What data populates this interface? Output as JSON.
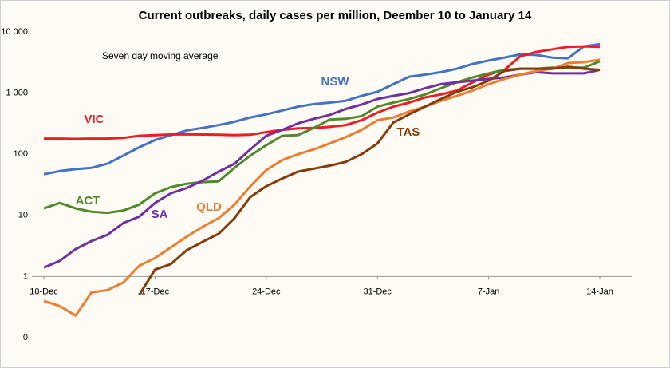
{
  "chart_data": {
    "type": "line",
    "title": "Current outbreaks, daily cases per million, Deember 10 to January 14",
    "subtitle": "Seven day moving average",
    "categories": [
      "10-Dec",
      null,
      null,
      null,
      null,
      null,
      null,
      "17-Dec",
      null,
      null,
      null,
      null,
      null,
      null,
      "24-Dec",
      null,
      null,
      null,
      null,
      null,
      null,
      "31-Dec",
      null,
      null,
      null,
      null,
      null,
      null,
      "7-Jan",
      null,
      null,
      null,
      null,
      null,
      null,
      "14-Jan"
    ],
    "log_scale": true,
    "ylim": [
      0.1,
      10000
    ],
    "yticks": [
      {
        "value": 10000,
        "label": "10 000"
      },
      {
        "value": 1000,
        "label": "1 000"
      },
      100,
      10,
      1,
      {
        "value": 0.1,
        "label": "0"
      }
    ],
    "x_axis_at": 1,
    "grid": false,
    "series": [
      {
        "name": "NSW",
        "color": "#4472c4",
        "values": [
          47,
          53,
          57,
          60,
          70,
          95,
          130,
          170,
          205,
          245,
          270,
          300,
          340,
          400,
          450,
          520,
          600,
          660,
          700,
          750,
          900,
          1050,
          1400,
          1850,
          2000,
          2200,
          2500,
          3000,
          3400,
          3800,
          4300,
          4200,
          3800,
          3700,
          5800,
          6300
        ]
      },
      {
        "name": "VIC",
        "color": "#ee1c25",
        "values": [
          180,
          180,
          178,
          180,
          180,
          185,
          200,
          205,
          210,
          212,
          210,
          208,
          205,
          208,
          230,
          250,
          265,
          270,
          280,
          300,
          360,
          480,
          600,
          700,
          850,
          950,
          1100,
          1500,
          2000,
          2400,
          4000,
          4700,
          5200,
          5700,
          5800,
          5700
        ]
      },
      {
        "name": "ACT",
        "color": "#4f8a2b",
        "values": [
          13,
          16,
          13,
          11.5,
          11,
          12,
          15,
          23,
          29,
          33,
          35,
          36,
          60,
          95,
          140,
          200,
          205,
          270,
          370,
          380,
          420,
          600,
          700,
          800,
          950,
          1200,
          1500,
          1800,
          2100,
          2400,
          2500,
          2500,
          2600,
          2600,
          2600,
          3300
        ]
      },
      {
        "name": "SA",
        "color": "#7030a0",
        "values": [
          1.4,
          1.8,
          2.8,
          3.8,
          4.8,
          7.5,
          9.5,
          16,
          23,
          28,
          37,
          52,
          70,
          120,
          200,
          250,
          320,
          380,
          440,
          550,
          650,
          800,
          900,
          1000,
          1200,
          1400,
          1500,
          1600,
          1700,
          1800,
          2000,
          2200,
          2100,
          2100,
          2100,
          2400
        ]
      },
      {
        "name": "QLD",
        "color": "#ed7d31",
        "values": [
          0.4,
          0.33,
          0.23,
          0.55,
          0.6,
          0.8,
          1.5,
          2,
          3,
          4.5,
          6.5,
          9,
          15,
          30,
          55,
          80,
          100,
          120,
          150,
          190,
          250,
          360,
          400,
          500,
          600,
          750,
          900,
          1100,
          1400,
          1700,
          2000,
          2300,
          2500,
          3100,
          3200,
          3500
        ]
      },
      {
        "name": "TAS",
        "color": "#843c0c",
        "values": [
          null,
          null,
          null,
          null,
          null,
          null,
          0.5,
          1.3,
          1.6,
          2.7,
          3.7,
          5,
          9,
          20,
          30,
          40,
          52,
          58,
          65,
          75,
          100,
          150,
          330,
          450,
          600,
          800,
          1050,
          1250,
          1600,
          2300,
          2500,
          2500,
          2500,
          2700,
          2500,
          2400
        ]
      }
    ]
  }
}
